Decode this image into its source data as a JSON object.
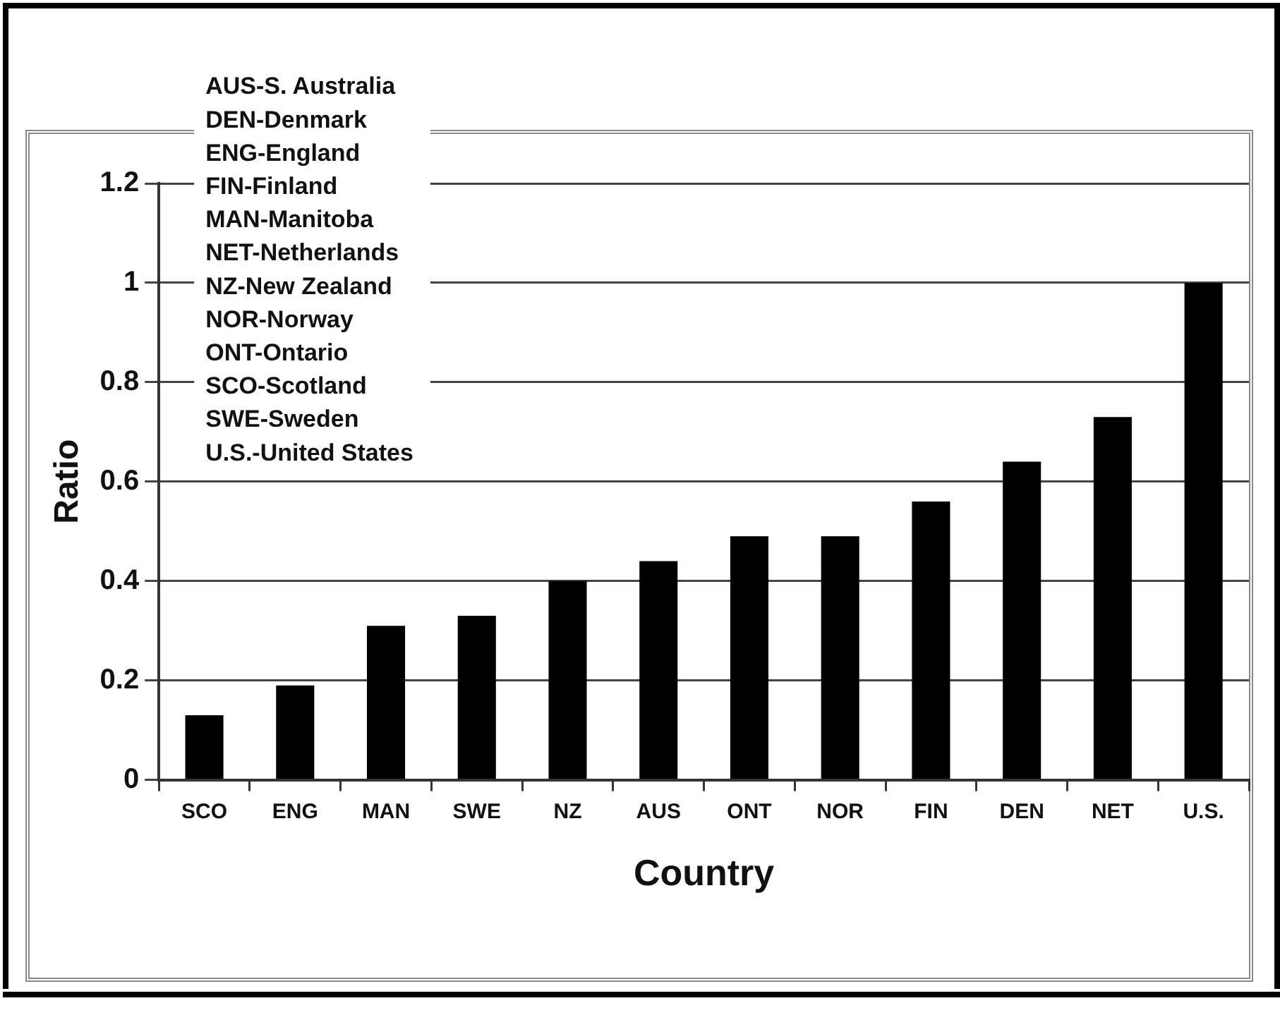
{
  "chart_data": {
    "type": "bar",
    "xlabel": "Country",
    "ylabel": "Ratio",
    "categories": [
      "SCO",
      "ENG",
      "MAN",
      "SWE",
      "NZ",
      "AUS",
      "ONT",
      "NOR",
      "FIN",
      "DEN",
      "NET",
      "U.S."
    ],
    "values": [
      0.13,
      0.19,
      0.31,
      0.33,
      0.4,
      0.44,
      0.49,
      0.49,
      0.56,
      0.64,
      0.73,
      1.0
    ],
    "color": "#000000",
    "ylim": [
      0,
      1.2
    ],
    "yticks": [
      0,
      0.2,
      0.4,
      0.6,
      0.8,
      1,
      1.2
    ],
    "grid": "y",
    "legend": false,
    "annotations": [
      "AUS-S. Australia",
      "DEN-Denmark",
      "ENG-England",
      "FIN-Finland",
      "MAN-Manitoba",
      "NET-Netherlands",
      "NZ-New Zealand",
      "NOR-Norway",
      "ONT-Ontario",
      "SCO-Scotland",
      "SWE-Sweden",
      "U.S.-United States"
    ]
  }
}
